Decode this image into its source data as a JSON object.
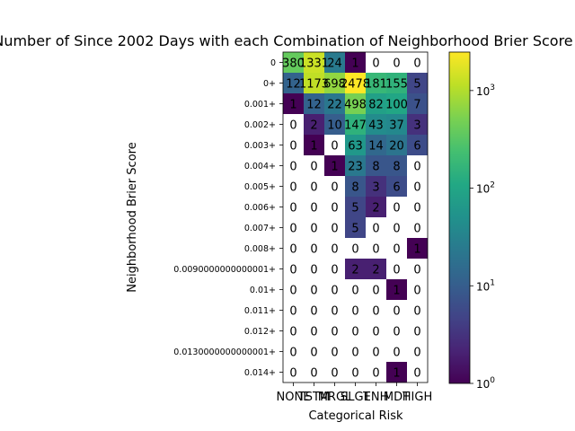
{
  "chart_data": {
    "type": "heatmap",
    "title": "Number of Since 2002 Days with each Combination of Neighborhood Brier Score",
    "xlabel": "Categorical Risk",
    "ylabel": "Neighborhood Brier Score",
    "x_categories": [
      "NONE",
      "TSTM",
      "MRGL",
      "SLGT",
      "ENH",
      "MDT",
      "HIGH"
    ],
    "y_categories": [
      "0",
      "0+",
      "0.001+",
      "0.002+",
      "0.003+",
      "0.004+",
      "0.005+",
      "0.006+",
      "0.007+",
      "0.008+",
      "0.0090000000000001+",
      "0.01+",
      "0.011+",
      "0.012+",
      "0.0130000000000001+",
      "0.014+"
    ],
    "values": [
      [
        380,
        1331,
        24,
        1,
        0,
        0,
        0
      ],
      [
        12,
        1173,
        698,
        2478,
        181,
        155,
        5
      ],
      [
        1,
        12,
        22,
        498,
        82,
        100,
        7
      ],
      [
        0,
        2,
        10,
        147,
        43,
        37,
        3
      ],
      [
        0,
        1,
        0,
        63,
        14,
        20,
        6
      ],
      [
        0,
        0,
        1,
        23,
        8,
        8,
        0
      ],
      [
        0,
        0,
        0,
        8,
        3,
        6,
        0
      ],
      [
        0,
        0,
        0,
        5,
        2,
        0,
        0
      ],
      [
        0,
        0,
        0,
        5,
        0,
        0,
        0
      ],
      [
        0,
        0,
        0,
        0,
        0,
        0,
        1
      ],
      [
        0,
        0,
        0,
        2,
        2,
        0,
        0
      ],
      [
        0,
        0,
        0,
        0,
        0,
        1,
        0
      ],
      [
        0,
        0,
        0,
        0,
        0,
        0,
        0
      ],
      [
        0,
        0,
        0,
        0,
        0,
        0,
        0
      ],
      [
        0,
        0,
        0,
        0,
        0,
        0,
        0
      ],
      [
        0,
        0,
        0,
        0,
        0,
        1,
        0
      ]
    ],
    "colorscale": "viridis",
    "color_scale_type": "log",
    "color_range": [
      1,
      2478
    ],
    "colorbar_ticks": [
      {
        "value": 1,
        "base": "10",
        "exp": "0"
      },
      {
        "value": 10,
        "base": "10",
        "exp": "1"
      },
      {
        "value": 100,
        "base": "10",
        "exp": "2"
      },
      {
        "value": 1000,
        "base": "10",
        "exp": "3"
      }
    ],
    "zero_cells_color": "#ffffff",
    "grid": false,
    "legend": "colorbar-right"
  }
}
